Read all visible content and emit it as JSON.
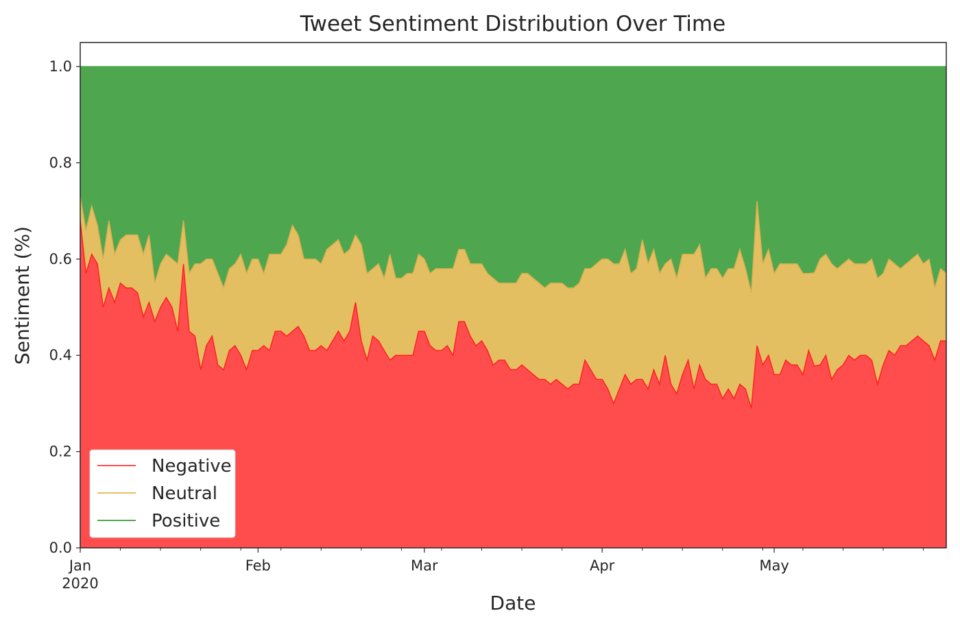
{
  "chart_data": {
    "type": "area",
    "stacked": true,
    "normalized": true,
    "title": "Tweet Sentiment Distribution Over Time",
    "xlabel": "Date",
    "ylabel": "Sentiment (%)",
    "ylim": [
      0,
      1.05
    ],
    "xlim": [
      0,
      151
    ],
    "y_ticks": [
      "0.0",
      "0.2",
      "0.4",
      "0.6",
      "0.8",
      "1.0"
    ],
    "y_tick_values": [
      0,
      0.2,
      0.4,
      0.6,
      0.8,
      1.0
    ],
    "x_ticks": [
      {
        "label": "Jan",
        "sublabel": "2020",
        "day": 0
      },
      {
        "label": "Feb",
        "day": 31
      },
      {
        "label": "Mar",
        "day": 60
      },
      {
        "label": "Apr",
        "day": 91
      },
      {
        "label": "May",
        "day": 121
      }
    ],
    "legend_position": "lower-left",
    "colors": {
      "Negative": "#ff4d4d",
      "Neutral": "#e4bf62",
      "Positive": "#4ea64e",
      "NegativeLine": "#ff2020",
      "NeutralLine": "#d9b050"
    },
    "series": [
      {
        "name": "Negative",
        "values": [
          0.68,
          0.57,
          0.61,
          0.59,
          0.5,
          0.54,
          0.51,
          0.55,
          0.54,
          0.54,
          0.53,
          0.48,
          0.51,
          0.47,
          0.5,
          0.52,
          0.5,
          0.45,
          0.59,
          0.45,
          0.44,
          0.37,
          0.42,
          0.44,
          0.38,
          0.37,
          0.41,
          0.42,
          0.4,
          0.37,
          0.41,
          0.41,
          0.42,
          0.41,
          0.45,
          0.45,
          0.44,
          0.45,
          0.46,
          0.44,
          0.41,
          0.41,
          0.42,
          0.41,
          0.43,
          0.45,
          0.43,
          0.45,
          0.51,
          0.43,
          0.39,
          0.44,
          0.43,
          0.41,
          0.39,
          0.4,
          0.4,
          0.4,
          0.4,
          0.45,
          0.45,
          0.42,
          0.41,
          0.41,
          0.42,
          0.4,
          0.47,
          0.47,
          0.44,
          0.42,
          0.43,
          0.41,
          0.38,
          0.39,
          0.39,
          0.37,
          0.37,
          0.38,
          0.37,
          0.36,
          0.35,
          0.35,
          0.34,
          0.35,
          0.34,
          0.33,
          0.34,
          0.34,
          0.39,
          0.37,
          0.35,
          0.35,
          0.33,
          0.3,
          0.33,
          0.36,
          0.34,
          0.35,
          0.35,
          0.33,
          0.37,
          0.34,
          0.4,
          0.34,
          0.32,
          0.36,
          0.39,
          0.33,
          0.38,
          0.35,
          0.34,
          0.34,
          0.31,
          0.33,
          0.31,
          0.34,
          0.33,
          0.29,
          0.42,
          0.38,
          0.4,
          0.36,
          0.36,
          0.39,
          0.38,
          0.38,
          0.36,
          0.41,
          0.37,
          0.38,
          0.4,
          0.35,
          0.37,
          0.38,
          0.4,
          0.39,
          0.4,
          0.4,
          0.39,
          0.34,
          0.38,
          0.41,
          0.4,
          0.42,
          0.42,
          0.43,
          0.44,
          0.43,
          0.42,
          0.39,
          0.43,
          0.43
        ]
      },
      {
        "name": "Neutral",
        "values": [
          0.05,
          0.09,
          0.1,
          0.08,
          0.1,
          0.14,
          0.1,
          0.09,
          0.11,
          0.11,
          0.12,
          0.13,
          0.14,
          0.08,
          0.09,
          0.09,
          0.1,
          0.14,
          0.09,
          0.12,
          0.15,
          0.22,
          0.18,
          0.16,
          0.19,
          0.17,
          0.17,
          0.17,
          0.21,
          0.2,
          0.19,
          0.19,
          0.15,
          0.2,
          0.16,
          0.16,
          0.19,
          0.22,
          0.19,
          0.16,
          0.19,
          0.19,
          0.17,
          0.21,
          0.2,
          0.19,
          0.18,
          0.17,
          0.14,
          0.2,
          0.18,
          0.14,
          0.16,
          0.15,
          0.22,
          0.16,
          0.16,
          0.17,
          0.17,
          0.16,
          0.15,
          0.15,
          0.17,
          0.17,
          0.16,
          0.18,
          0.15,
          0.15,
          0.15,
          0.17,
          0.16,
          0.16,
          0.18,
          0.16,
          0.16,
          0.18,
          0.18,
          0.19,
          0.2,
          0.2,
          0.2,
          0.19,
          0.21,
          0.2,
          0.21,
          0.21,
          0.2,
          0.21,
          0.19,
          0.21,
          0.24,
          0.25,
          0.27,
          0.29,
          0.26,
          0.26,
          0.23,
          0.23,
          0.29,
          0.26,
          0.25,
          0.23,
          0.19,
          0.26,
          0.24,
          0.25,
          0.22,
          0.28,
          0.25,
          0.21,
          0.24,
          0.24,
          0.25,
          0.25,
          0.27,
          0.28,
          0.25,
          0.24,
          0.3,
          0.21,
          0.22,
          0.21,
          0.23,
          0.2,
          0.21,
          0.21,
          0.21,
          0.16,
          0.19,
          0.22,
          0.21,
          0.24,
          0.21,
          0.21,
          0.2,
          0.2,
          0.19,
          0.19,
          0.21,
          0.22,
          0.19,
          0.19,
          0.19,
          0.16,
          0.17,
          0.17,
          0.17,
          0.16,
          0.18,
          0.15,
          0.15,
          0.14
        ]
      },
      {
        "name": "Positive",
        "values": [
          0.27,
          0.34,
          0.29,
          0.33,
          0.4,
          0.32,
          0.39,
          0.36,
          0.35,
          0.35,
          0.35,
          0.39,
          0.35,
          0.45,
          0.41,
          0.39,
          0.4,
          0.41,
          0.32,
          0.43,
          0.41,
          0.41,
          0.4,
          0.4,
          0.43,
          0.46,
          0.42,
          0.41,
          0.39,
          0.43,
          0.4,
          0.4,
          0.43,
          0.39,
          0.39,
          0.39,
          0.37,
          0.33,
          0.35,
          0.4,
          0.4,
          0.4,
          0.41,
          0.38,
          0.37,
          0.36,
          0.39,
          0.38,
          0.35,
          0.37,
          0.43,
          0.42,
          0.41,
          0.44,
          0.39,
          0.44,
          0.44,
          0.43,
          0.43,
          0.39,
          0.4,
          0.43,
          0.42,
          0.42,
          0.42,
          0.42,
          0.38,
          0.38,
          0.41,
          0.41,
          0.41,
          0.43,
          0.44,
          0.45,
          0.45,
          0.45,
          0.45,
          0.43,
          0.43,
          0.44,
          0.45,
          0.46,
          0.45,
          0.45,
          0.45,
          0.46,
          0.46,
          0.45,
          0.42,
          0.42,
          0.41,
          0.4,
          0.4,
          0.41,
          0.41,
          0.38,
          0.43,
          0.42,
          0.36,
          0.41,
          0.38,
          0.43,
          0.41,
          0.4,
          0.44,
          0.39,
          0.39,
          0.39,
          0.37,
          0.44,
          0.42,
          0.42,
          0.44,
          0.42,
          0.42,
          0.38,
          0.42,
          0.47,
          0.28,
          0.41,
          0.38,
          0.43,
          0.41,
          0.41,
          0.41,
          0.41,
          0.43,
          0.43,
          0.42,
          0.4,
          0.39,
          0.41,
          0.42,
          0.41,
          0.4,
          0.41,
          0.41,
          0.41,
          0.4,
          0.44,
          0.43,
          0.4,
          0.41,
          0.42,
          0.41,
          0.4,
          0.39,
          0.41,
          0.4,
          0.46,
          0.42,
          0.43
        ]
      }
    ]
  }
}
